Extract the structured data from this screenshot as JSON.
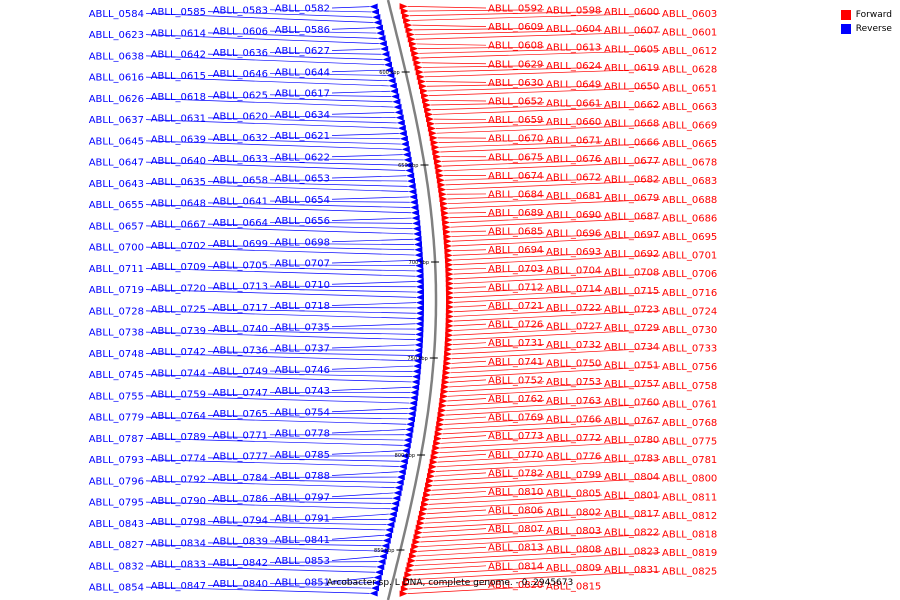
{
  "legend": [
    {
      "label": "Forward",
      "color": "#ff0000"
    },
    {
      "label": "Reverse",
      "color": "#0000ff"
    }
  ],
  "footer": "Arcobacter sp. L DNA, complete genome. - 0..2945673",
  "colors": {
    "forward": "#ff0000",
    "reverse": "#0000ff",
    "backbone": "#808080"
  },
  "scale_labels": [
    "600 kbp",
    "650 kbp",
    "700 kbp",
    "750 kbp",
    "800 kbp",
    "850 kbp"
  ],
  "forward_genes": [
    "ABLL_0592",
    "ABLL_0598",
    "ABLL_0600",
    "ABLL_0603",
    "ABLL_0609",
    "ABLL_0604",
    "ABLL_0607",
    "ABLL_0601",
    "ABLL_0608",
    "ABLL_0613",
    "ABLL_0605",
    "ABLL_0612",
    "ABLL_0629",
    "ABLL_0624",
    "ABLL_0619",
    "ABLL_0628",
    "ABLL_0630",
    "ABLL_0649",
    "ABLL_0650",
    "ABLL_0651",
    "ABLL_0652",
    "ABLL_0661",
    "ABLL_0662",
    "ABLL_0663",
    "ABLL_0659",
    "ABLL_0660",
    "ABLL_0668",
    "ABLL_0669",
    "ABLL_0670",
    "ABLL_0671",
    "ABLL_0666",
    "ABLL_0665",
    "ABLL_0675",
    "ABLL_0676",
    "ABLL_0677",
    "ABLL_0678",
    "ABLL_0674",
    "ABLL_0672",
    "ABLL_0682",
    "ABLL_0683",
    "ABLL_0684",
    "ABLL_0681",
    "ABLL_0679",
    "ABLL_0688",
    "ABLL_0689",
    "ABLL_0690",
    "ABLL_0687",
    "ABLL_0686",
    "ABLL_0685",
    "ABLL_0696",
    "ABLL_0697",
    "ABLL_0695",
    "ABLL_0694",
    "ABLL_0693",
    "ABLL_0692",
    "ABLL_0701",
    "ABLL_0703",
    "ABLL_0704",
    "ABLL_0708",
    "ABLL_0706",
    "ABLL_0712",
    "ABLL_0714",
    "ABLL_0715",
    "ABLL_0716",
    "ABLL_0721",
    "ABLL_0722",
    "ABLL_0723",
    "ABLL_0724",
    "ABLL_0726",
    "ABLL_0727",
    "ABLL_0729",
    "ABLL_0730",
    "ABLL_0731",
    "ABLL_0732",
    "ABLL_0734",
    "ABLL_0733",
    "ABLL_0741",
    "ABLL_0750",
    "ABLL_0751",
    "ABLL_0756",
    "ABLL_0752",
    "ABLL_0753",
    "ABLL_0757",
    "ABLL_0758",
    "ABLL_0762",
    "ABLL_0763",
    "ABLL_0760",
    "ABLL_0761",
    "ABLL_0769",
    "ABLL_0766",
    "ABLL_0767",
    "ABLL_0768",
    "ABLL_0773",
    "ABLL_0772",
    "ABLL_0780",
    "ABLL_0775",
    "ABLL_0770",
    "ABLL_0776",
    "ABLL_0783",
    "ABLL_0781",
    "ABLL_0782",
    "ABLL_0799",
    "ABLL_0804",
    "ABLL_0800",
    "ABLL_0810",
    "ABLL_0805",
    "ABLL_0801",
    "ABLL_0811",
    "ABLL_0806",
    "ABLL_0802",
    "ABLL_0817",
    "ABLL_0812",
    "ABLL_0807",
    "ABLL_0803",
    "ABLL_0822",
    "ABLL_0818",
    "ABLL_0813",
    "ABLL_0808",
    "ABLL_0823",
    "ABLL_0819",
    "ABLL_0814",
    "ABLL_0809",
    "ABLL_0831",
    "ABLL_0825",
    "ABLL_0820",
    "ABLL_0815"
  ],
  "reverse_genes": [
    "ABLL_0582",
    "ABLL_0583",
    "ABLL_0585",
    "ABLL_0584",
    "ABLL_0586",
    "ABLL_0606",
    "ABLL_0614",
    "ABLL_0623",
    "ABLL_0627",
    "ABLL_0636",
    "ABLL_0642",
    "ABLL_0638",
    "ABLL_0644",
    "ABLL_0646",
    "ABLL_0615",
    "ABLL_0616",
    "ABLL_0617",
    "ABLL_0625",
    "ABLL_0618",
    "ABLL_0626",
    "ABLL_0634",
    "ABLL_0620",
    "ABLL_0631",
    "ABLL_0637",
    "ABLL_0621",
    "ABLL_0632",
    "ABLL_0639",
    "ABLL_0645",
    "ABLL_0622",
    "ABLL_0633",
    "ABLL_0640",
    "ABLL_0647",
    "ABLL_0653",
    "ABLL_0658",
    "ABLL_0635",
    "ABLL_0643",
    "ABLL_0654",
    "ABLL_0641",
    "ABLL_0648",
    "ABLL_0655",
    "ABLL_0656",
    "ABLL_0664",
    "ABLL_0667",
    "ABLL_0657",
    "ABLL_0698",
    "ABLL_0699",
    "ABLL_0702",
    "ABLL_0700",
    "ABLL_0707",
    "ABLL_0705",
    "ABLL_0709",
    "ABLL_0711",
    "ABLL_0710",
    "ABLL_0713",
    "ABLL_0720",
    "ABLL_0719",
    "ABLL_0718",
    "ABLL_0717",
    "ABLL_0725",
    "ABLL_0728",
    "ABLL_0735",
    "ABLL_0740",
    "ABLL_0739",
    "ABLL_0738",
    "ABLL_0737",
    "ABLL_0736",
    "ABLL_0742",
    "ABLL_0748",
    "ABLL_0746",
    "ABLL_0749",
    "ABLL_0744",
    "ABLL_0745",
    "ABLL_0743",
    "ABLL_0747",
    "ABLL_0759",
    "ABLL_0755",
    "ABLL_0754",
    "ABLL_0765",
    "ABLL_0764",
    "ABLL_0779",
    "ABLL_0778",
    "ABLL_0771",
    "ABLL_0789",
    "ABLL_0787",
    "ABLL_0785",
    "ABLL_0777",
    "ABLL_0774",
    "ABLL_0793",
    "ABLL_0788",
    "ABLL_0784",
    "ABLL_0792",
    "ABLL_0796",
    "ABLL_0797",
    "ABLL_0786",
    "ABLL_0790",
    "ABLL_0795",
    "ABLL_0791",
    "ABLL_0794",
    "ABLL_0798",
    "ABLL_0843",
    "ABLL_0841",
    "ABLL_0839",
    "ABLL_0834",
    "ABLL_0827",
    "ABLL_0853",
    "ABLL_0842",
    "ABLL_0833",
    "ABLL_0832",
    "ABLL_0851",
    "ABLL_0840",
    "ABLL_0847",
    "ABLL_0854"
  ]
}
